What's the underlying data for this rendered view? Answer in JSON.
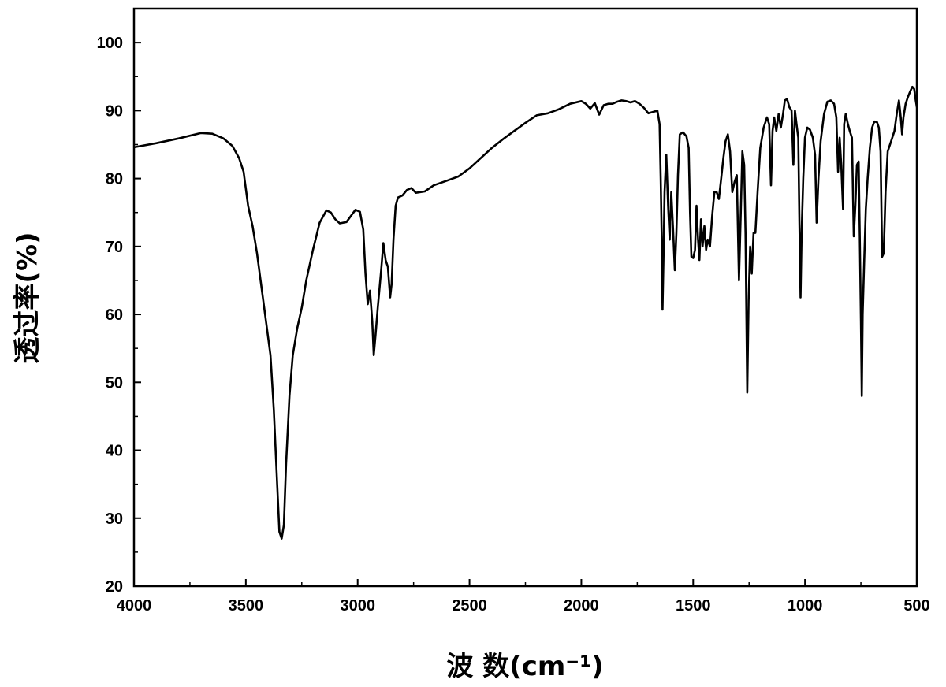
{
  "chart_data": {
    "type": "line",
    "title": "",
    "xlabel": "波 数(cm⁻¹)",
    "ylabel": "透过率(%)",
    "xlim": [
      4000,
      500
    ],
    "ylim": [
      20,
      105
    ],
    "x_ticks": [
      4000,
      3500,
      3000,
      2500,
      2000,
      1500,
      1000,
      500
    ],
    "y_ticks": [
      20,
      30,
      40,
      50,
      60,
      70,
      80,
      90,
      100
    ],
    "x_tick_labels": [
      "4000",
      "3500",
      "3000",
      "2500",
      "2000",
      "1500",
      "1000",
      "500"
    ],
    "y_tick_labels": [
      "20",
      "30",
      "40",
      "50",
      "60",
      "70",
      "80",
      "90",
      "100"
    ],
    "grid": false,
    "series": [
      {
        "color": "#000000",
        "points": [
          [
            4000,
            84.6
          ],
          [
            3900,
            85.2
          ],
          [
            3800,
            85.9
          ],
          [
            3700,
            86.7
          ],
          [
            3650,
            86.6
          ],
          [
            3600,
            85.9
          ],
          [
            3560,
            84.8
          ],
          [
            3530,
            83.0
          ],
          [
            3510,
            81.0
          ],
          [
            3490,
            76.0
          ],
          [
            3470,
            73.0
          ],
          [
            3450,
            69.0
          ],
          [
            3430,
            64.0
          ],
          [
            3410,
            59.0
          ],
          [
            3390,
            54.0
          ],
          [
            3375,
            46.0
          ],
          [
            3360,
            35.0
          ],
          [
            3350,
            28.0
          ],
          [
            3340,
            27.0
          ],
          [
            3330,
            29.0
          ],
          [
            3320,
            38.0
          ],
          [
            3305,
            48.0
          ],
          [
            3290,
            54.0
          ],
          [
            3270,
            58.0
          ],
          [
            3250,
            61.0
          ],
          [
            3230,
            65.0
          ],
          [
            3200,
            69.5
          ],
          [
            3170,
            73.5
          ],
          [
            3140,
            75.3
          ],
          [
            3120,
            75.0
          ],
          [
            3100,
            74.0
          ],
          [
            3080,
            73.4
          ],
          [
            3050,
            73.6
          ],
          [
            3030,
            74.5
          ],
          [
            3010,
            75.4
          ],
          [
            2990,
            75.1
          ],
          [
            2975,
            72.5
          ],
          [
            2965,
            66.0
          ],
          [
            2955,
            61.5
          ],
          [
            2945,
            63.5
          ],
          [
            2935,
            59.0
          ],
          [
            2928,
            54.0
          ],
          [
            2920,
            57.0
          ],
          [
            2910,
            61.0
          ],
          [
            2895,
            66.5
          ],
          [
            2885,
            70.5
          ],
          [
            2875,
            68.0
          ],
          [
            2865,
            67.0
          ],
          [
            2855,
            62.5
          ],
          [
            2848,
            64.5
          ],
          [
            2840,
            71.0
          ],
          [
            2830,
            76.0
          ],
          [
            2820,
            77.2
          ],
          [
            2800,
            77.5
          ],
          [
            2780,
            78.3
          ],
          [
            2760,
            78.6
          ],
          [
            2740,
            77.9
          ],
          [
            2700,
            78.1
          ],
          [
            2660,
            79.0
          ],
          [
            2600,
            79.7
          ],
          [
            2550,
            80.3
          ],
          [
            2500,
            81.5
          ],
          [
            2450,
            83.0
          ],
          [
            2400,
            84.5
          ],
          [
            2350,
            85.8
          ],
          [
            2300,
            87.0
          ],
          [
            2250,
            88.2
          ],
          [
            2200,
            89.3
          ],
          [
            2150,
            89.6
          ],
          [
            2100,
            90.2
          ],
          [
            2050,
            91.0
          ],
          [
            2000,
            91.4
          ],
          [
            1980,
            91.0
          ],
          [
            1960,
            90.3
          ],
          [
            1940,
            91.1
          ],
          [
            1920,
            89.4
          ],
          [
            1900,
            90.8
          ],
          [
            1880,
            91.0
          ],
          [
            1860,
            91.0
          ],
          [
            1840,
            91.3
          ],
          [
            1820,
            91.5
          ],
          [
            1800,
            91.4
          ],
          [
            1780,
            91.2
          ],
          [
            1760,
            91.4
          ],
          [
            1740,
            91.0
          ],
          [
            1720,
            90.4
          ],
          [
            1700,
            89.6
          ],
          [
            1680,
            89.8
          ],
          [
            1660,
            90.0
          ],
          [
            1650,
            88.0
          ],
          [
            1645,
            80.0
          ],
          [
            1640,
            70.0
          ],
          [
            1637,
            60.7
          ],
          [
            1633,
            68.0
          ],
          [
            1628,
            78.0
          ],
          [
            1620,
            83.5
          ],
          [
            1612,
            76.0
          ],
          [
            1605,
            71.0
          ],
          [
            1598,
            78.0
          ],
          [
            1590,
            72.5
          ],
          [
            1582,
            66.5
          ],
          [
            1575,
            72.0
          ],
          [
            1568,
            80.5
          ],
          [
            1560,
            86.5
          ],
          [
            1545,
            86.8
          ],
          [
            1530,
            86.2
          ],
          [
            1520,
            84.5
          ],
          [
            1514,
            75.0
          ],
          [
            1508,
            68.5
          ],
          [
            1500,
            68.3
          ],
          [
            1492,
            69.5
          ],
          [
            1485,
            76.0
          ],
          [
            1478,
            71.0
          ],
          [
            1472,
            68.0
          ],
          [
            1465,
            74.0
          ],
          [
            1458,
            70.0
          ],
          [
            1450,
            73.0
          ],
          [
            1442,
            69.5
          ],
          [
            1435,
            71.0
          ],
          [
            1425,
            70.0
          ],
          [
            1415,
            74.5
          ],
          [
            1405,
            78.0
          ],
          [
            1395,
            78.0
          ],
          [
            1385,
            77.0
          ],
          [
            1375,
            80.0
          ],
          [
            1365,
            83.0
          ],
          [
            1355,
            85.5
          ],
          [
            1345,
            86.5
          ],
          [
            1335,
            84.0
          ],
          [
            1325,
            78.0
          ],
          [
            1315,
            79.5
          ],
          [
            1305,
            80.5
          ],
          [
            1295,
            65.0
          ],
          [
            1287,
            75.0
          ],
          [
            1280,
            84.0
          ],
          [
            1272,
            82.0
          ],
          [
            1266,
            72.0
          ],
          [
            1258,
            48.5
          ],
          [
            1252,
            62.0
          ],
          [
            1245,
            70.0
          ],
          [
            1238,
            66.0
          ],
          [
            1230,
            72.0
          ],
          [
            1222,
            72.0
          ],
          [
            1212,
            78.0
          ],
          [
            1200,
            84.5
          ],
          [
            1185,
            87.5
          ],
          [
            1170,
            89.0
          ],
          [
            1160,
            88.0
          ],
          [
            1152,
            79.0
          ],
          [
            1145,
            87.0
          ],
          [
            1138,
            89.0
          ],
          [
            1128,
            87.0
          ],
          [
            1118,
            89.5
          ],
          [
            1108,
            87.5
          ],
          [
            1098,
            89.5
          ],
          [
            1090,
            91.5
          ],
          [
            1080,
            91.7
          ],
          [
            1070,
            90.5
          ],
          [
            1060,
            90.0
          ],
          [
            1052,
            82.0
          ],
          [
            1045,
            90.0
          ],
          [
            1038,
            88.0
          ],
          [
            1030,
            86.0
          ],
          [
            1025,
            74.0
          ],
          [
            1020,
            62.5
          ],
          [
            1015,
            72.0
          ],
          [
            1008,
            80.0
          ],
          [
            1000,
            86.0
          ],
          [
            990,
            87.5
          ],
          [
            978,
            87.2
          ],
          [
            965,
            86.0
          ],
          [
            955,
            83.5
          ],
          [
            948,
            73.5
          ],
          [
            940,
            80.0
          ],
          [
            930,
            85.5
          ],
          [
            915,
            89.5
          ],
          [
            900,
            91.3
          ],
          [
            885,
            91.5
          ],
          [
            870,
            91.0
          ],
          [
            860,
            89.0
          ],
          [
            852,
            81.0
          ],
          [
            845,
            86.0
          ],
          [
            838,
            82.0
          ],
          [
            830,
            75.5
          ],
          [
            825,
            88.0
          ],
          [
            818,
            89.5
          ],
          [
            808,
            88.0
          ],
          [
            800,
            87.0
          ],
          [
            790,
            86.0
          ],
          [
            782,
            71.5
          ],
          [
            775,
            76.0
          ],
          [
            768,
            82.0
          ],
          [
            760,
            82.5
          ],
          [
            755,
            71.0
          ],
          [
            750,
            59.0
          ],
          [
            746,
            48.0
          ],
          [
            742,
            60.0
          ],
          [
            735,
            68.0
          ],
          [
            728,
            75.5
          ],
          [
            720,
            80.0
          ],
          [
            710,
            84.5
          ],
          [
            700,
            87.5
          ],
          [
            690,
            88.4
          ],
          [
            678,
            88.3
          ],
          [
            670,
            87.5
          ],
          [
            662,
            84.0
          ],
          [
            655,
            68.5
          ],
          [
            648,
            69.0
          ],
          [
            640,
            78.0
          ],
          [
            630,
            84.0
          ],
          [
            615,
            85.5
          ],
          [
            600,
            87.0
          ],
          [
            590,
            89.5
          ],
          [
            580,
            91.5
          ],
          [
            572,
            89.0
          ],
          [
            566,
            86.5
          ],
          [
            560,
            89.0
          ],
          [
            550,
            91.0
          ],
          [
            540,
            92.0
          ],
          [
            530,
            92.8
          ],
          [
            520,
            93.5
          ],
          [
            512,
            93.2
          ],
          [
            505,
            91.5
          ],
          [
            500,
            90.5
          ]
        ]
      }
    ]
  }
}
